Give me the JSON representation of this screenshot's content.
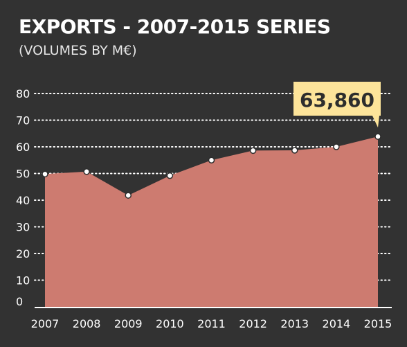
{
  "header": {
    "title": "EXPORTS - 2007-2015 SERIES",
    "subtitle": "(VOLUMES BY M€)"
  },
  "callout": {
    "label": "63,860"
  },
  "colors": {
    "background": "#323232",
    "area_fill": "#cd7b70",
    "gridline": "#ffffff",
    "callout_fill": "#fde49a",
    "callout_text": "#2d2d2d",
    "marker_fill": "#ffffff",
    "marker_stroke": "#2d2d2d"
  },
  "chart_data": {
    "type": "area",
    "title": "EXPORTS - 2007-2015 SERIES",
    "subtitle": "(VOLUMES BY M€)",
    "x": [
      "2007",
      "2008",
      "2009",
      "2010",
      "2011",
      "2012",
      "2013",
      "2014",
      "2015"
    ],
    "series": [
      {
        "values": [
          49.8,
          50.7,
          41.8,
          49.2,
          55.0,
          58.6,
          58.7,
          60.0,
          63.86
        ]
      }
    ],
    "ylim": [
      0,
      80
    ],
    "yticks": [
      0,
      10,
      20,
      30,
      40,
      50,
      60,
      70,
      80
    ],
    "grid": true,
    "gridstyle": "dotted",
    "annotations": [
      {
        "x": "2015",
        "text": "63,860"
      }
    ]
  }
}
